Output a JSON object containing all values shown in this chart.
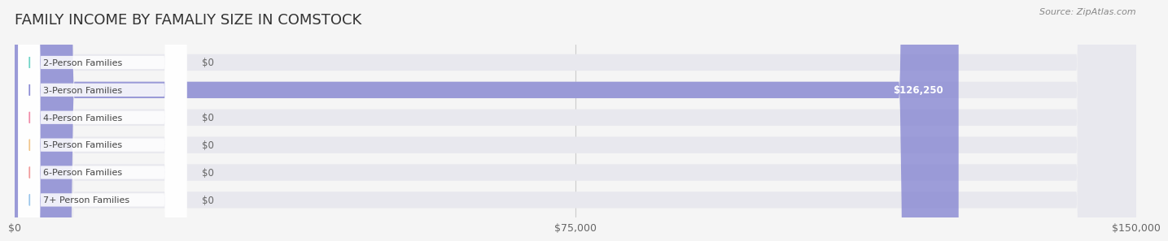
{
  "title": "FAMILY INCOME BY FAMALIY SIZE IN COMSTOCK",
  "source": "Source: ZipAtlas.com",
  "categories": [
    "2-Person Families",
    "3-Person Families",
    "4-Person Families",
    "5-Person Families",
    "6-Person Families",
    "7+ Person Families"
  ],
  "values": [
    0,
    126250,
    0,
    0,
    0,
    0
  ],
  "bar_colors": [
    "#5ecfbf",
    "#8080d0",
    "#f080a0",
    "#f0c080",
    "#f09090",
    "#90c0e8"
  ],
  "label_colors": [
    "#5ecfbf",
    "#8080d0",
    "#f080a0",
    "#f0c080",
    "#f09090",
    "#90c0e8"
  ],
  "xlim": [
    0,
    150000
  ],
  "xticks": [
    0,
    75000,
    150000
  ],
  "xtick_labels": [
    "$0",
    "$75,000",
    "$150,000"
  ],
  "background_color": "#f5f5f5",
  "bar_bg_color": "#e8e8ee",
  "title_fontsize": 13,
  "bar_height": 0.6,
  "value_label_3person": "$126,250"
}
